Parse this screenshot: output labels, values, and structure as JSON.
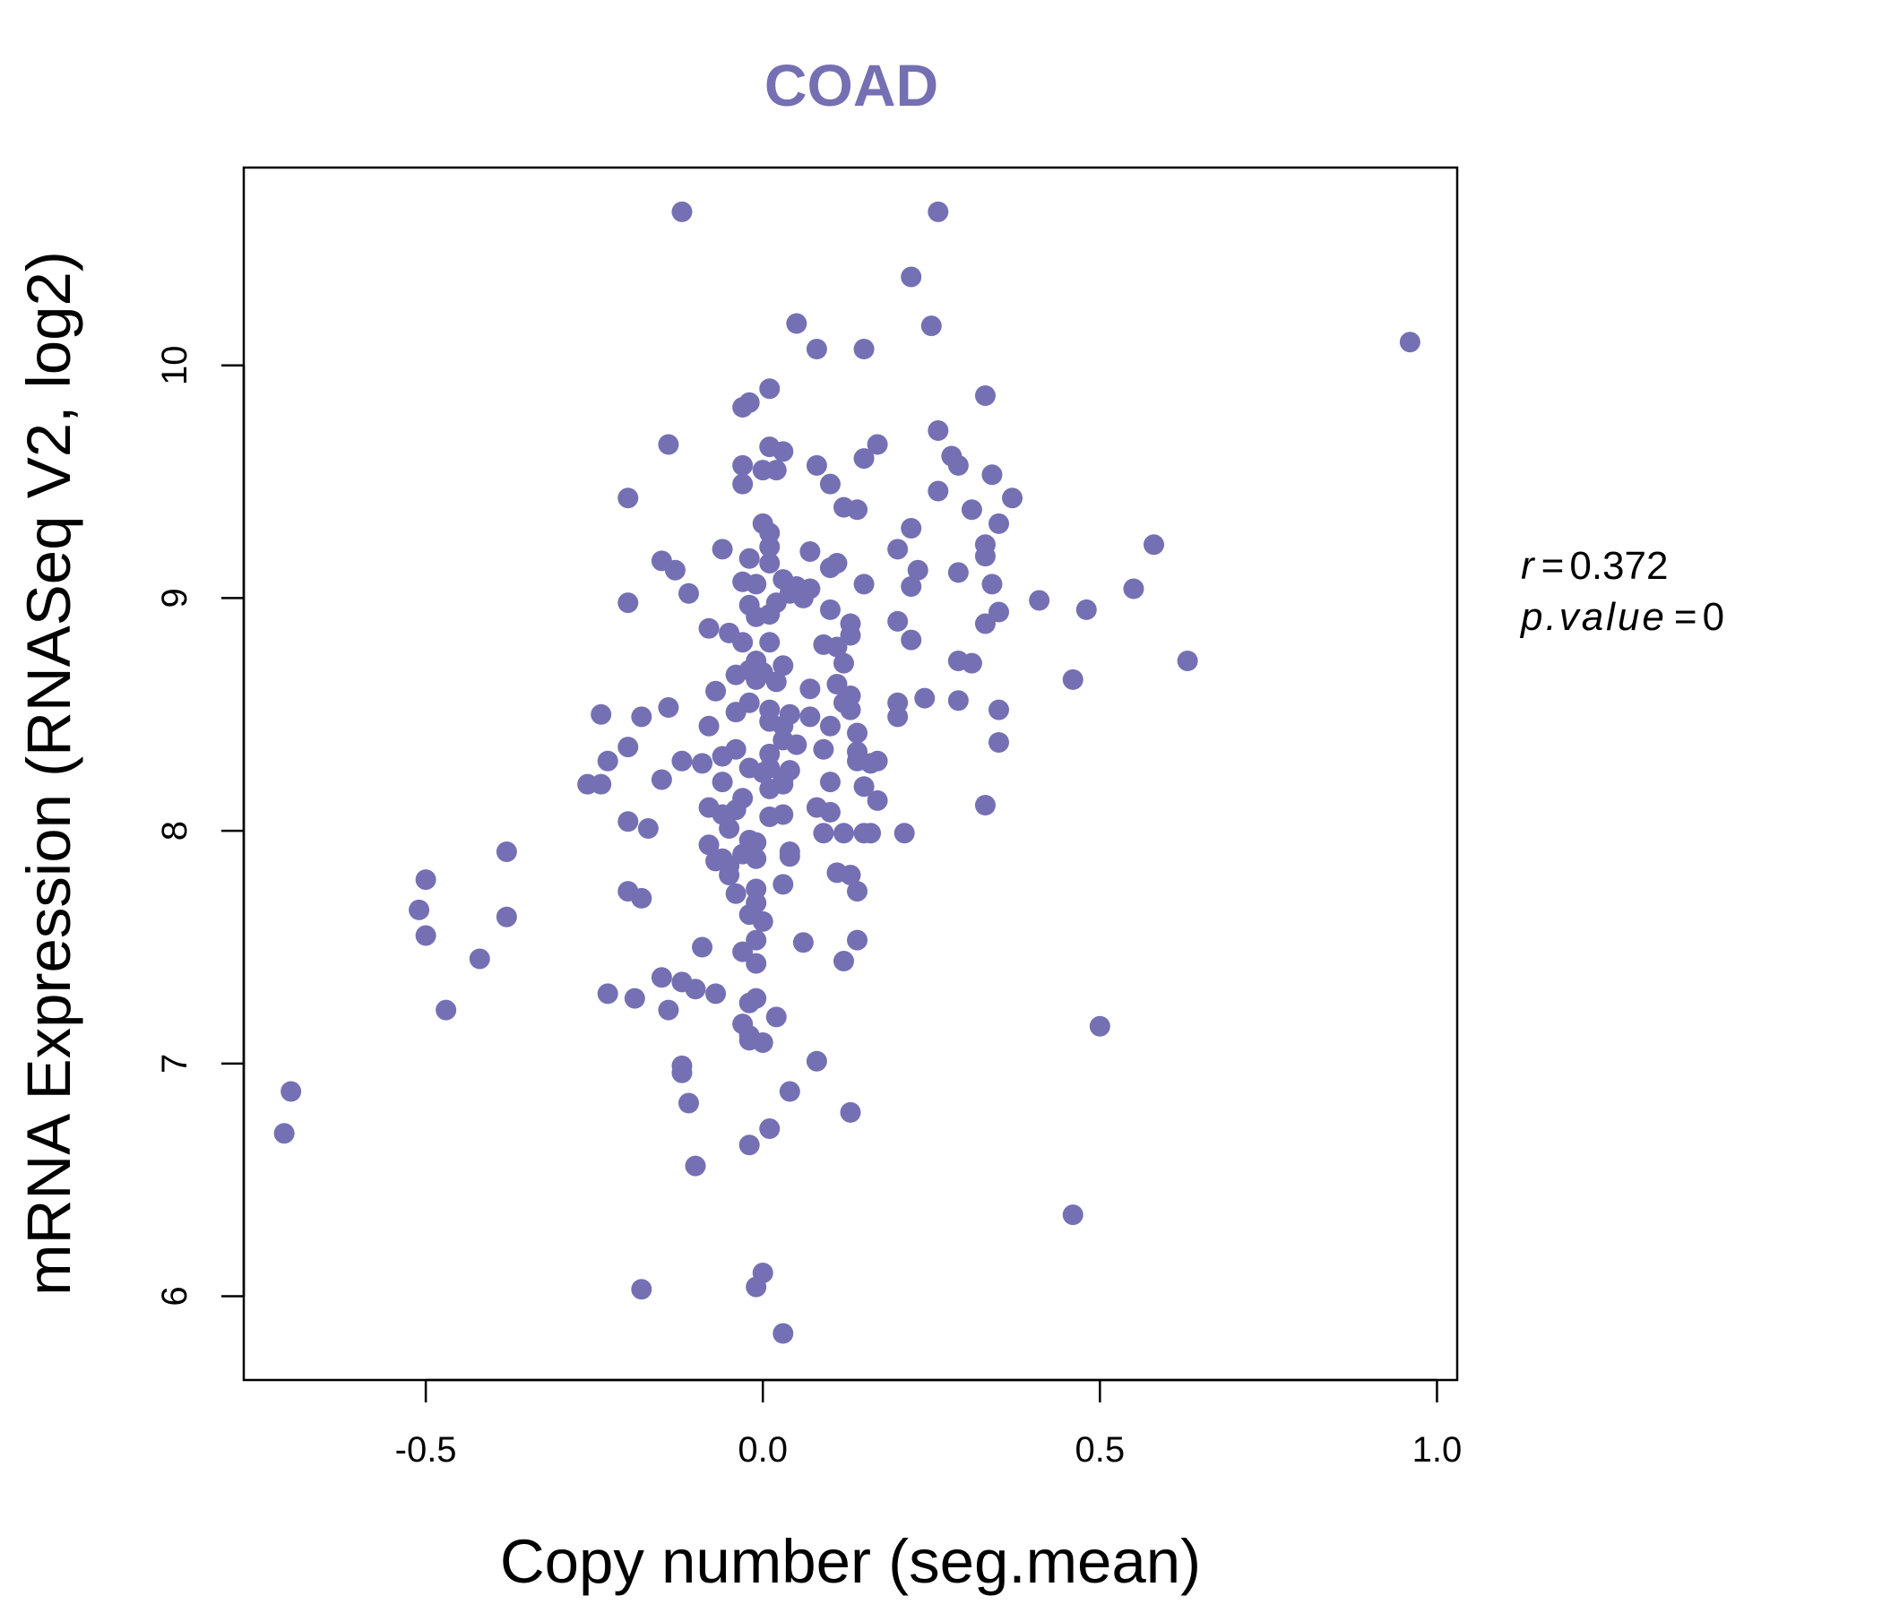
{
  "chart_data": {
    "type": "scatter",
    "title": "COAD",
    "xlabel": "Copy number (seg.mean)",
    "ylabel": "mRNA Expression (RNASeq V2, log2)",
    "xlim": [
      -0.77,
      1.03
    ],
    "ylim": [
      5.64,
      10.85
    ],
    "x_ticks": [
      -0.5,
      0.0,
      0.5,
      1.0
    ],
    "x_tick_labels": [
      "-0.5",
      "0.0",
      "0.5",
      "1.0"
    ],
    "y_ticks": [
      6,
      7,
      8,
      9,
      10
    ],
    "y_tick_labels": [
      "6",
      "7",
      "8",
      "9",
      "10"
    ],
    "grid": false,
    "annotation": {
      "r_label": "r",
      "r_value": "0.372",
      "p_label": "p.value",
      "p_value": "0"
    },
    "series": [
      {
        "color": "#7570b3",
        "points": [
          [
            -0.12,
            10.66
          ],
          [
            0.26,
            10.66
          ],
          [
            0.22,
            10.38
          ],
          [
            0.05,
            10.18
          ],
          [
            0.25,
            10.17
          ],
          [
            0.08,
            10.07
          ],
          [
            0.15,
            10.07
          ],
          [
            0.96,
            10.1
          ],
          [
            0.01,
            9.9
          ],
          [
            -0.02,
            9.84
          ],
          [
            -0.03,
            9.82
          ],
          [
            0.33,
            9.87
          ],
          [
            0.26,
            9.72
          ],
          [
            0.17,
            9.66
          ],
          [
            -0.14,
            9.66
          ],
          [
            0.01,
            9.65
          ],
          [
            0.03,
            9.63
          ],
          [
            0.15,
            9.6
          ],
          [
            -0.03,
            9.57
          ],
          [
            0.08,
            9.57
          ],
          [
            0.0,
            9.55
          ],
          [
            0.02,
            9.55
          ],
          [
            0.29,
            9.57
          ],
          [
            0.28,
            9.61
          ],
          [
            0.34,
            9.53
          ],
          [
            0.1,
            9.49
          ],
          [
            -0.03,
            9.49
          ],
          [
            0.26,
            9.46
          ],
          [
            0.37,
            9.43
          ],
          [
            -0.2,
            9.43
          ],
          [
            0.12,
            9.39
          ],
          [
            0.14,
            9.38
          ],
          [
            0.31,
            9.38
          ],
          [
            0.35,
            9.32
          ],
          [
            0.0,
            9.32
          ],
          [
            0.01,
            9.28
          ],
          [
            0.22,
            9.3
          ],
          [
            0.58,
            9.23
          ],
          [
            0.33,
            9.23
          ],
          [
            -0.06,
            9.21
          ],
          [
            0.01,
            9.22
          ],
          [
            0.07,
            9.2
          ],
          [
            0.2,
            9.21
          ],
          [
            0.33,
            9.18
          ],
          [
            -0.02,
            9.17
          ],
          [
            -0.15,
            9.16
          ],
          [
            0.11,
            9.15
          ],
          [
            0.01,
            9.15
          ],
          [
            0.1,
            9.13
          ],
          [
            -0.13,
            9.12
          ],
          [
            0.23,
            9.12
          ],
          [
            0.29,
            9.11
          ],
          [
            -0.03,
            9.07
          ],
          [
            0.03,
            9.08
          ],
          [
            -0.01,
            9.06
          ],
          [
            0.05,
            9.05
          ],
          [
            0.15,
            9.06
          ],
          [
            0.22,
            9.05
          ],
          [
            0.34,
            9.06
          ],
          [
            0.55,
            9.04
          ],
          [
            0.07,
            9.04
          ],
          [
            0.04,
            9.02
          ],
          [
            -0.11,
            9.02
          ],
          [
            0.06,
            9.0
          ],
          [
            -0.2,
            8.98
          ],
          [
            0.41,
            8.99
          ],
          [
            0.02,
            8.98
          ],
          [
            -0.02,
            8.97
          ],
          [
            0.48,
            8.95
          ],
          [
            0.35,
            8.94
          ],
          [
            0.1,
            8.95
          ],
          [
            0.01,
            8.93
          ],
          [
            -0.01,
            8.92
          ],
          [
            0.2,
            8.9
          ],
          [
            0.33,
            8.89
          ],
          [
            0.13,
            8.89
          ],
          [
            -0.08,
            8.87
          ],
          [
            -0.05,
            8.85
          ],
          [
            0.13,
            8.84
          ],
          [
            0.22,
            8.82
          ],
          [
            -0.03,
            8.81
          ],
          [
            0.01,
            8.81
          ],
          [
            0.09,
            8.8
          ],
          [
            0.11,
            8.79
          ],
          [
            0.63,
            8.73
          ],
          [
            0.29,
            8.73
          ],
          [
            0.31,
            8.72
          ],
          [
            -0.01,
            8.73
          ],
          [
            0.12,
            8.72
          ],
          [
            0.03,
            8.71
          ],
          [
            -0.02,
            8.69
          ],
          [
            0.0,
            8.68
          ],
          [
            -0.04,
            8.67
          ],
          [
            0.46,
            8.65
          ],
          [
            -0.01,
            8.65
          ],
          [
            0.02,
            8.64
          ],
          [
            0.11,
            8.63
          ],
          [
            0.07,
            8.61
          ],
          [
            -0.07,
            8.6
          ],
          [
            0.13,
            8.58
          ],
          [
            0.29,
            8.56
          ],
          [
            0.24,
            8.57
          ],
          [
            0.2,
            8.55
          ],
          [
            0.12,
            8.55
          ],
          [
            -0.02,
            8.55
          ],
          [
            0.35,
            8.52
          ],
          [
            -0.14,
            8.53
          ],
          [
            0.13,
            8.52
          ],
          [
            0.01,
            8.52
          ],
          [
            -0.04,
            8.51
          ],
          [
            -0.24,
            8.5
          ],
          [
            0.2,
            8.49
          ],
          [
            0.07,
            8.49
          ],
          [
            0.04,
            8.5
          ],
          [
            -0.18,
            8.49
          ],
          [
            0.01,
            8.47
          ],
          [
            -0.08,
            8.45
          ],
          [
            0.1,
            8.45
          ],
          [
            0.03,
            8.45
          ],
          [
            0.14,
            8.42
          ],
          [
            0.35,
            8.38
          ],
          [
            0.03,
            8.39
          ],
          [
            0.05,
            8.37
          ],
          [
            -0.04,
            8.35
          ],
          [
            -0.2,
            8.36
          ],
          [
            0.09,
            8.35
          ],
          [
            0.14,
            8.34
          ],
          [
            0.01,
            8.33
          ],
          [
            -0.06,
            8.32
          ],
          [
            0.14,
            8.3
          ],
          [
            -0.12,
            8.3
          ],
          [
            0.16,
            8.29
          ],
          [
            -0.09,
            8.29
          ],
          [
            -0.23,
            8.3
          ],
          [
            0.17,
            8.3
          ],
          [
            0.01,
            8.27
          ],
          [
            -0.02,
            8.27
          ],
          [
            0.04,
            8.26
          ],
          [
            0.0,
            8.25
          ],
          [
            0.03,
            8.22
          ],
          [
            -0.15,
            8.22
          ],
          [
            -0.06,
            8.21
          ],
          [
            0.1,
            8.21
          ],
          [
            0.15,
            8.19
          ],
          [
            -0.26,
            8.2
          ],
          [
            -0.24,
            8.2
          ],
          [
            0.03,
            8.2
          ],
          [
            0.01,
            8.18
          ],
          [
            -0.03,
            8.14
          ],
          [
            0.17,
            8.13
          ],
          [
            0.33,
            8.11
          ],
          [
            -0.08,
            8.1
          ],
          [
            0.08,
            8.1
          ],
          [
            0.1,
            8.08
          ],
          [
            0.03,
            8.07
          ],
          [
            0.01,
            8.06
          ],
          [
            -0.06,
            8.07
          ],
          [
            -0.04,
            8.09
          ],
          [
            -0.2,
            8.04
          ],
          [
            -0.05,
            8.01
          ],
          [
            -0.17,
            8.01
          ],
          [
            0.09,
            7.99
          ],
          [
            0.12,
            7.99
          ],
          [
            0.15,
            7.99
          ],
          [
            0.16,
            7.99
          ],
          [
            0.21,
            7.99
          ],
          [
            -0.02,
            7.96
          ],
          [
            -0.01,
            7.95
          ],
          [
            -0.08,
            7.94
          ],
          [
            -0.38,
            7.91
          ],
          [
            0.04,
            7.91
          ],
          [
            -0.03,
            7.9
          ],
          [
            -0.06,
            7.88
          ],
          [
            -0.01,
            7.88
          ],
          [
            0.04,
            7.89
          ],
          [
            -0.05,
            7.85
          ],
          [
            -0.07,
            7.87
          ],
          [
            0.11,
            7.82
          ],
          [
            -0.05,
            7.81
          ],
          [
            0.13,
            7.81
          ],
          [
            -0.5,
            7.79
          ],
          [
            0.03,
            7.77
          ],
          [
            -0.01,
            7.75
          ],
          [
            -0.2,
            7.74
          ],
          [
            -0.18,
            7.71
          ],
          [
            -0.04,
            7.73
          ],
          [
            0.14,
            7.74
          ],
          [
            -0.01,
            7.69
          ],
          [
            -0.51,
            7.66
          ],
          [
            -0.02,
            7.64
          ],
          [
            0.0,
            7.61
          ],
          [
            -0.38,
            7.63
          ],
          [
            -0.5,
            7.55
          ],
          [
            -0.01,
            7.53
          ],
          [
            0.14,
            7.53
          ],
          [
            0.06,
            7.52
          ],
          [
            -0.09,
            7.5
          ],
          [
            -0.03,
            7.48
          ],
          [
            -0.42,
            7.45
          ],
          [
            0.12,
            7.44
          ],
          [
            -0.01,
            7.43
          ],
          [
            -0.15,
            7.37
          ],
          [
            -0.12,
            7.35
          ],
          [
            -0.23,
            7.3
          ],
          [
            -0.1,
            7.32
          ],
          [
            -0.07,
            7.3
          ],
          [
            -0.01,
            7.28
          ],
          [
            -0.19,
            7.28
          ],
          [
            -0.02,
            7.26
          ],
          [
            -0.47,
            7.23
          ],
          [
            -0.14,
            7.23
          ],
          [
            0.02,
            7.2
          ],
          [
            -0.03,
            7.17
          ],
          [
            -0.02,
            7.12
          ],
          [
            0.0,
            7.09
          ],
          [
            -0.02,
            7.1
          ],
          [
            0.5,
            7.16
          ],
          [
            0.08,
            7.01
          ],
          [
            -0.12,
            6.99
          ],
          [
            -0.12,
            6.96
          ],
          [
            -0.7,
            6.88
          ],
          [
            0.04,
            6.88
          ],
          [
            -0.11,
            6.83
          ],
          [
            0.13,
            6.79
          ],
          [
            -0.71,
            6.7
          ],
          [
            0.01,
            6.72
          ],
          [
            -0.02,
            6.65
          ],
          [
            -0.1,
            6.56
          ],
          [
            0.46,
            6.35
          ],
          [
            0.0,
            6.1
          ],
          [
            -0.01,
            6.04
          ],
          [
            -0.18,
            6.03
          ],
          [
            0.03,
            5.84
          ]
        ]
      }
    ]
  }
}
